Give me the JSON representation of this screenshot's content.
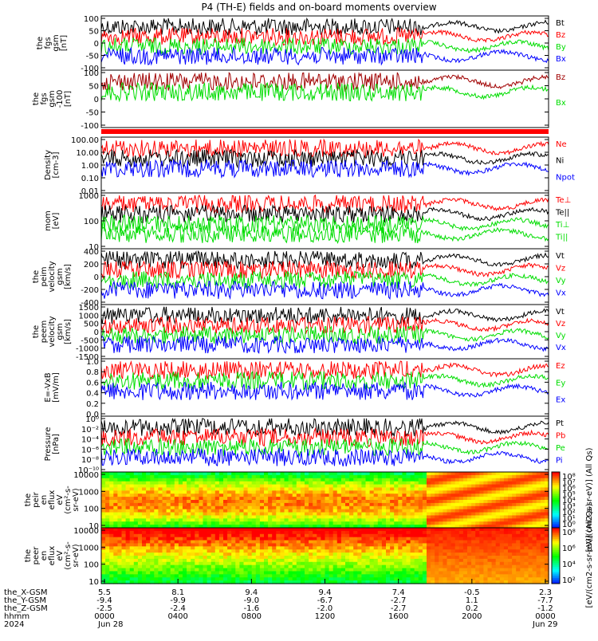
{
  "title": "P4 (TH-E) fields and on-board moments overview",
  "colors": {
    "black": "#000000",
    "red": "#ff0000",
    "green": "#00dd00",
    "blue": "#0000ff",
    "darkred": "#a00000"
  },
  "chart_data": [
    {
      "id": "fgs",
      "type": "line",
      "ylabel": [
        "the",
        "fgs",
        "gsm",
        "[nT]"
      ],
      "ylim": [
        -100,
        100
      ],
      "yticks": [
        "100",
        "50",
        "0",
        "-50",
        "-100"
      ],
      "series": [
        {
          "name": "Bt",
          "color": "black"
        },
        {
          "name": "Bz",
          "color": "red"
        },
        {
          "name": "By",
          "color": "green"
        },
        {
          "name": "Bx",
          "color": "blue"
        }
      ]
    },
    {
      "id": "fgs_mb",
      "type": "line",
      "ylabel": [
        "the",
        "fgs",
        "gsm",
        "-100",
        "[nT]"
      ],
      "ylim": [
        -120,
        100
      ],
      "yticks": [
        "100",
        "50",
        "0",
        "-50",
        "-100"
      ],
      "series": [
        {
          "name": "Bz",
          "color": "darkred"
        },
        {
          "name": "Bx",
          "color": "green"
        }
      ]
    },
    {
      "id": "density",
      "type": "line",
      "ylabel": [
        "Density",
        "[cm-3]"
      ],
      "scale": "log",
      "yticks": [
        "100.00",
        "10.00",
        "1.00",
        "0.10",
        "0.01"
      ],
      "series": [
        {
          "name": "Ne",
          "color": "red"
        },
        {
          "name": "Ni",
          "color": "black"
        },
        {
          "name": "Npot",
          "color": "blue"
        }
      ]
    },
    {
      "id": "temp",
      "type": "line",
      "ylabel": [
        "mom",
        "[eV]"
      ],
      "scale": "log",
      "yticks": [
        "1000",
        "100",
        "10"
      ],
      "series": [
        {
          "name": "Te⊥",
          "color": "red"
        },
        {
          "name": "Te||",
          "color": "black"
        },
        {
          "name": "Ti⊥",
          "color": "green"
        },
        {
          "name": "Ti||",
          "color": "green"
        }
      ]
    },
    {
      "id": "vpeim",
      "type": "line",
      "ylabel": [
        "the",
        "peim",
        "velocity",
        "gsm",
        "[km/s]"
      ],
      "ylim": [
        -400,
        400
      ],
      "yticks": [
        "400",
        "200",
        "0",
        "-200",
        "-400"
      ],
      "series": [
        {
          "name": "Vt",
          "color": "black"
        },
        {
          "name": "Vz",
          "color": "red"
        },
        {
          "name": "Vy",
          "color": "green"
        },
        {
          "name": "Vx",
          "color": "blue"
        }
      ]
    },
    {
      "id": "vpeem",
      "type": "line",
      "ylabel": [
        "the",
        "peem",
        "velocity",
        "gsm",
        "[km/s]"
      ],
      "ylim": [
        -1500,
        1500
      ],
      "yticks": [
        "1500",
        "1000",
        "500",
        "0",
        "-500",
        "-1000",
        "-1500"
      ],
      "series": [
        {
          "name": "Vt",
          "color": "black"
        },
        {
          "name": "Vz",
          "color": "red"
        },
        {
          "name": "Vy",
          "color": "green"
        },
        {
          "name": "Vx",
          "color": "blue"
        }
      ]
    },
    {
      "id": "efield",
      "type": "line",
      "ylabel": [
        "E=-VxB",
        "[mV/m]"
      ],
      "ylim": [
        0,
        1
      ],
      "yticks": [
        "1.0",
        "0.8",
        "0.6",
        "0.4",
        "0.2",
        "0.0"
      ],
      "series": [
        {
          "name": "Ez",
          "color": "red"
        },
        {
          "name": "Ey",
          "color": "green"
        },
        {
          "name": "Ex",
          "color": "blue"
        }
      ]
    },
    {
      "id": "pressure",
      "type": "line",
      "ylabel": [
        "Pressure",
        "[nPa]"
      ],
      "scale": "log",
      "yticks": [
        "10⁰",
        "10⁻²",
        "10⁻⁴",
        "10⁻⁶",
        "10⁻⁸",
        "10⁻¹⁰"
      ],
      "series": [
        {
          "name": "Pt",
          "color": "black"
        },
        {
          "name": "Pb",
          "color": "red"
        },
        {
          "name": "Pe",
          "color": "green"
        },
        {
          "name": "Pi",
          "color": "blue"
        }
      ]
    },
    {
      "id": "peir",
      "type": "heatmap",
      "ylabel": [
        "the",
        "peir",
        "en",
        "eflux",
        "eV",
        "(cm²-s-",
        "sr-eV)"
      ],
      "yticks": [
        "10000",
        "1000",
        "100",
        "10"
      ],
      "colorbar": {
        "label": "[eV/(cm2-s-sr-eV)] (All Qs)",
        "ticks": [
          "10⁸",
          "10⁷",
          "10⁶",
          "10⁵",
          "10⁴",
          "10³",
          "10²",
          "10¹",
          "10⁰"
        ]
      }
    },
    {
      "id": "peer",
      "type": "heatmap",
      "ylabel": [
        "the",
        "peer",
        "en",
        "eflux",
        "eV",
        "(cm²-s-",
        "sr-eV)"
      ],
      "yticks": [
        "10000",
        "1000",
        "100",
        "10"
      ],
      "colorbar": {
        "label": "[eV/(cm2-s-sr-eV)] (All Qs)",
        "ticks": [
          "10⁸",
          "10⁶",
          "10⁴",
          "10²"
        ]
      }
    }
  ],
  "xaxis": {
    "rows": [
      {
        "label": "the_X-GSM",
        "values": [
          "5.5",
          "8.1",
          "9.4",
          "9.4",
          "7.4",
          "-0.5",
          "2.3"
        ]
      },
      {
        "label": "the_Y-GSM",
        "values": [
          "-9.4",
          "-9.9",
          "-9.0",
          "-6.7",
          "-2.7",
          "1.1",
          "-7.7"
        ]
      },
      {
        "label": "the_Z-GSM",
        "values": [
          "-2.5",
          "-2.4",
          "-1.6",
          "-2.0",
          "-2.7",
          "0.2",
          "-1.2"
        ]
      },
      {
        "label": "hhmm",
        "values": [
          "0000",
          "0400",
          "0800",
          "1200",
          "1600",
          "2000",
          "0000"
        ]
      }
    ],
    "year": "2024",
    "date_start": "Jun 28",
    "date_end": "Jun 29"
  }
}
